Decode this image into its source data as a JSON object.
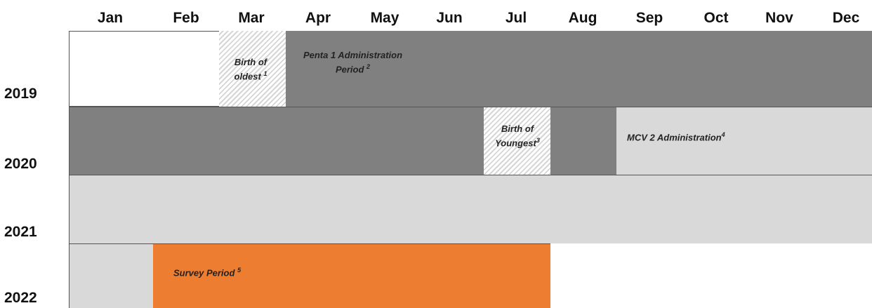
{
  "months": [
    "Jan",
    "Feb",
    "Mar",
    "Apr",
    "May",
    "Jun",
    "Jul",
    "Aug",
    "Sep",
    "Oct",
    "Nov",
    "Dec"
  ],
  "years": [
    "2019",
    "2020",
    "2021",
    "2022"
  ],
  "events": [
    {
      "text": "Birth of oldest",
      "note": "1"
    },
    {
      "text": "Penta 1 Administration Period",
      "note": "2"
    },
    {
      "text": "Birth of Youngest",
      "note": "3"
    },
    {
      "text": "MCV 2 Administration",
      "note": "4"
    },
    {
      "text": "Survey Period",
      "note": "5"
    }
  ]
}
